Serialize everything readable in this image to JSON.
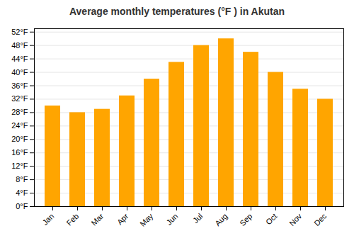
{
  "chart_data": {
    "type": "bar",
    "title": "Average monthly temperatures (°F ) in Akutan",
    "categories": [
      "Jan",
      "Feb",
      "Mar",
      "Apr",
      "May",
      "Jun",
      "Jul",
      "Aug",
      "Sep",
      "Oct",
      "Nov",
      "Dec"
    ],
    "values": [
      30,
      28,
      29,
      33,
      38,
      43,
      48,
      50,
      46,
      40,
      35,
      32
    ],
    "color": "#FFA500",
    "ylim": [
      0,
      53
    ],
    "yticks": [
      {
        "value": 0,
        "label": "0°F"
      },
      {
        "value": 4,
        "label": "4°F"
      },
      {
        "value": 8,
        "label": "8°F"
      },
      {
        "value": 12,
        "label": "12°F"
      },
      {
        "value": 16,
        "label": "16°F"
      },
      {
        "value": 20,
        "label": "20°F"
      },
      {
        "value": 24,
        "label": "24°F"
      },
      {
        "value": 28,
        "label": "28°F"
      },
      {
        "value": 32,
        "label": "32°F"
      },
      {
        "value": 36,
        "label": "36°F"
      },
      {
        "value": 40,
        "label": "40°F"
      },
      {
        "value": 44,
        "label": "44°F"
      },
      {
        "value": 48,
        "label": "48°F"
      },
      {
        "value": 52,
        "label": "52°F"
      }
    ],
    "grid": true
  }
}
